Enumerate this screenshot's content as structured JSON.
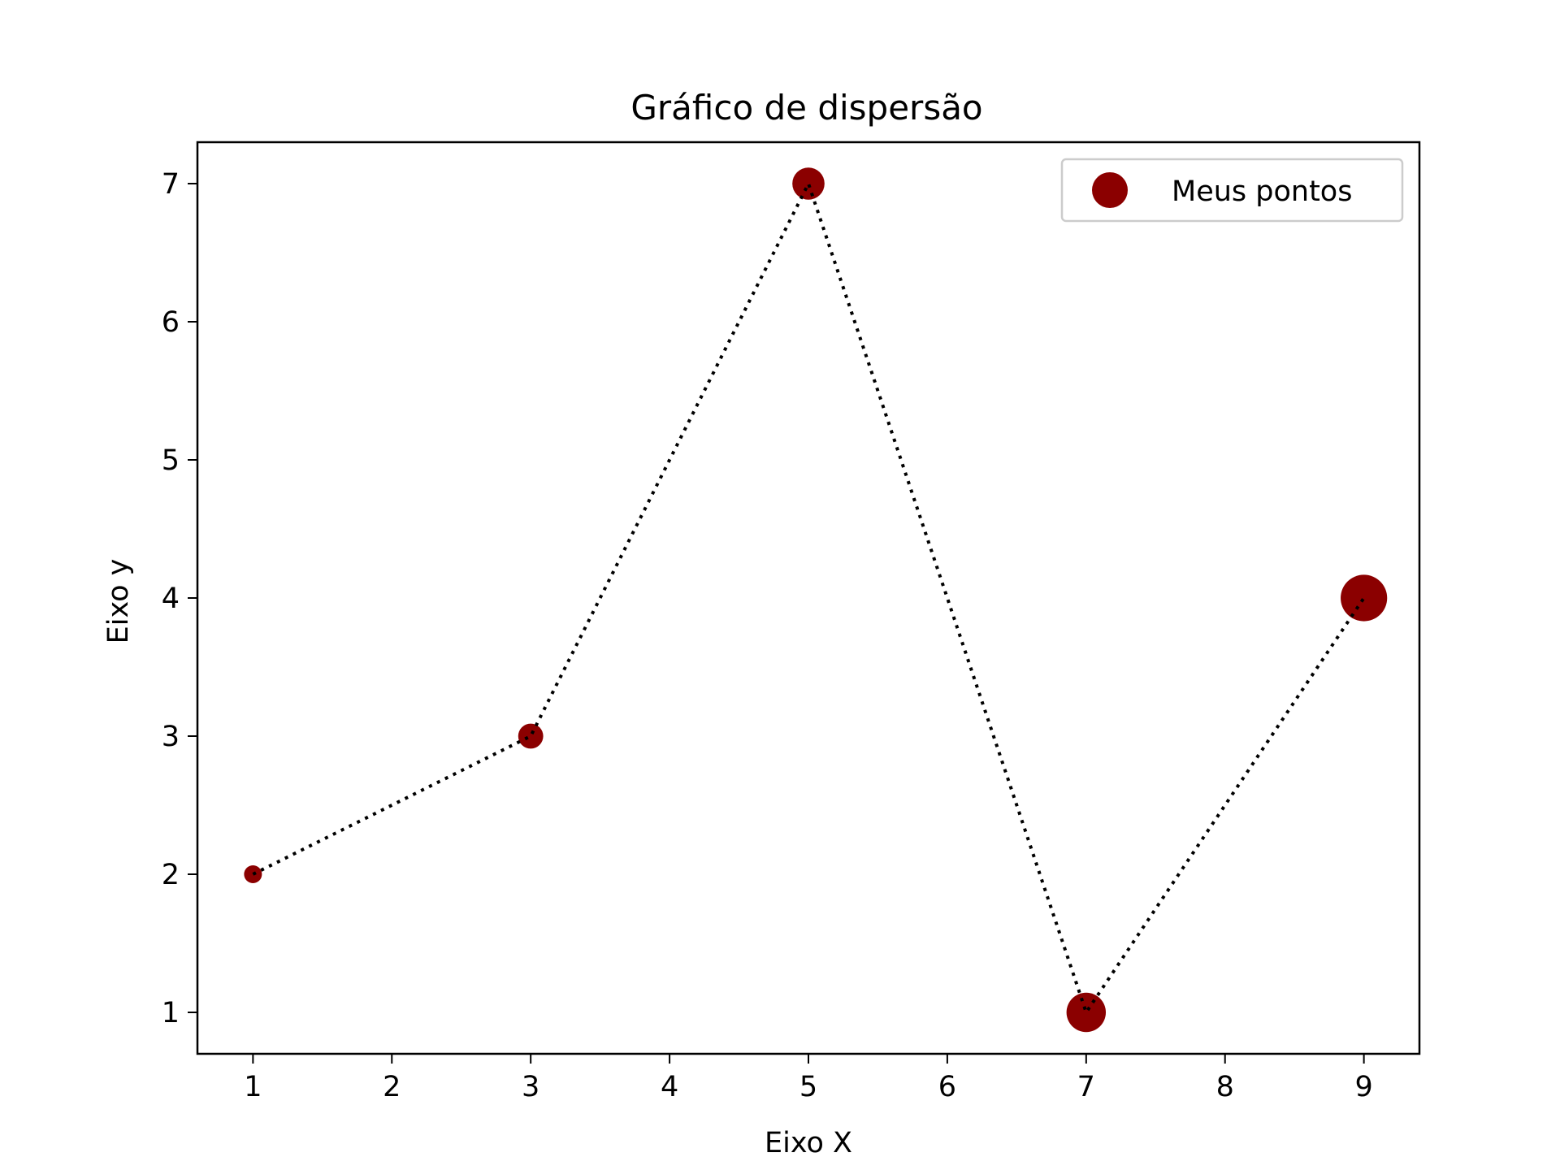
{
  "chart_data": {
    "type": "scatter",
    "title": "Gráfico de dispersão",
    "xlabel": "Eixo X",
    "ylabel": "Eixo y",
    "x": [
      1,
      3,
      5,
      7,
      9
    ],
    "y": [
      2,
      3,
      7,
      1,
      4
    ],
    "marker_sizes": [
      1,
      2,
      3,
      4,
      5
    ],
    "xlim": [
      0.6,
      9.4
    ],
    "ylim": [
      0.7,
      7.3
    ],
    "xticks": [
      1,
      2,
      3,
      4,
      5,
      6,
      7,
      8,
      9
    ],
    "yticks": [
      1,
      2,
      3,
      4,
      5,
      6,
      7
    ],
    "series": [
      {
        "name": "Meus pontos",
        "color": "#8b0000",
        "marker": "circle"
      }
    ],
    "connector_line": {
      "style": "dotted",
      "color": "#000000"
    },
    "legend": {
      "position": "top-right",
      "entries": [
        "Meus pontos"
      ]
    },
    "grid": false
  }
}
